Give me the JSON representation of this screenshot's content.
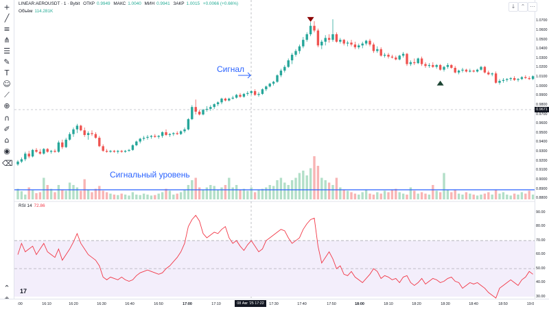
{
  "header": {
    "symbol": "LINEAR:AEROUSDT · 1 · Bybit",
    "open_label": "ОТКР",
    "open_value": "0.9949",
    "high_label": "МАКС",
    "high_value": "1.0040",
    "low_label": "МИН",
    "low_value": "0.9941",
    "close_label": "ЗАКР",
    "close_value": "1.0015",
    "change": "+0.0066 (+0.66%)",
    "volume_label": "Объём",
    "volume_value": "114.281K"
  },
  "rsi": {
    "label": "RSI 14",
    "value": "72.86"
  },
  "annotations": {
    "signal": "Сигнал",
    "signal_level": "Сигнальный уровень"
  },
  "price_scale": {
    "current": "0.9671",
    "labels": [
      "1.0700",
      "1.0600",
      "1.0500",
      "1.0400",
      "1.0300",
      "1.0200",
      "1.0100",
      "1.0000",
      "0.9900",
      "0.9800",
      "0.9700",
      "0.9600",
      "0.9500",
      "0.9400",
      "0.9300",
      "0.9200",
      "0.9100",
      "0.9000",
      "0.8900",
      "0.8800"
    ],
    "rsi_labels": [
      "90.00",
      "80.00",
      "70.00",
      "60.00",
      "50.00",
      "40.00",
      "30.00"
    ]
  },
  "time_axis": {
    "labels": [
      ":00",
      "16:10",
      "16:20",
      "16:30",
      "16:40",
      "16:50",
      "17:00",
      "17:10",
      "17:30",
      "17:40",
      "17:50",
      "18:00",
      "18:10",
      "18:20",
      "18:30",
      "18:40",
      "18:50",
      "19:0"
    ],
    "cursor": "08 Авг '25   17:22"
  },
  "colors": {
    "up": "#26a69a",
    "down": "#ef5350",
    "vol_up": "#b2dfc8",
    "vol_down": "#f8b4b4",
    "rsi": "#f23645",
    "level": "#2962ff",
    "rsi_band": "#f3eefb"
  },
  "chart_data": [
    {
      "type": "candlestick",
      "title": "LINEAR:AEROUSDT · 1 · Bybit",
      "x_start": "16:00",
      "x_step_minutes": 1,
      "ylim": [
        0.879,
        1.078
      ],
      "signal_level": 0.8893,
      "ohlc": [
        [
          0.9165,
          0.921,
          0.915,
          0.9195
        ],
        [
          0.9195,
          0.924,
          0.918,
          0.922
        ],
        [
          0.922,
          0.93,
          0.92,
          0.928
        ],
        [
          0.928,
          0.931,
          0.923,
          0.925
        ],
        [
          0.925,
          0.933,
          0.924,
          0.932
        ],
        [
          0.932,
          0.934,
          0.929,
          0.93
        ],
        [
          0.93,
          0.933,
          0.927,
          0.928
        ],
        [
          0.928,
          0.934,
          0.927,
          0.933
        ],
        [
          0.933,
          0.934,
          0.929,
          0.93
        ],
        [
          0.93,
          0.932,
          0.928,
          0.931
        ],
        [
          0.931,
          0.933,
          0.929,
          0.93
        ],
        [
          0.93,
          0.942,
          0.929,
          0.94
        ],
        [
          0.94,
          0.943,
          0.933,
          0.935
        ],
        [
          0.935,
          0.945,
          0.934,
          0.943
        ],
        [
          0.943,
          0.951,
          0.942,
          0.949
        ],
        [
          0.949,
          0.956,
          0.946,
          0.954
        ],
        [
          0.954,
          0.96,
          0.95,
          0.958
        ],
        [
          0.958,
          0.959,
          0.952,
          0.953
        ],
        [
          0.953,
          0.956,
          0.946,
          0.948
        ],
        [
          0.948,
          0.952,
          0.943,
          0.95
        ],
        [
          0.95,
          0.953,
          0.947,
          0.949
        ],
        [
          0.949,
          0.951,
          0.944,
          0.945
        ],
        [
          0.945,
          0.947,
          0.935,
          0.936
        ],
        [
          0.936,
          0.938,
          0.93,
          0.931
        ],
        [
          0.931,
          0.933,
          0.929,
          0.93
        ],
        [
          0.93,
          0.932,
          0.929,
          0.931
        ],
        [
          0.931,
          0.932,
          0.929,
          0.93
        ],
        [
          0.93,
          0.932,
          0.928,
          0.931
        ],
        [
          0.931,
          0.932,
          0.929,
          0.93
        ],
        [
          0.93,
          0.932,
          0.929,
          0.931
        ],
        [
          0.931,
          0.933,
          0.93,
          0.932
        ],
        [
          0.932,
          0.938,
          0.931,
          0.937
        ],
        [
          0.937,
          0.942,
          0.936,
          0.941
        ],
        [
          0.941,
          0.945,
          0.939,
          0.944
        ],
        [
          0.944,
          0.947,
          0.942,
          0.945
        ],
        [
          0.945,
          0.948,
          0.943,
          0.946
        ],
        [
          0.946,
          0.948,
          0.944,
          0.947
        ],
        [
          0.947,
          0.949,
          0.945,
          0.946
        ],
        [
          0.946,
          0.948,
          0.944,
          0.947
        ],
        [
          0.947,
          0.952,
          0.945,
          0.951
        ],
        [
          0.951,
          0.954,
          0.947,
          0.948
        ],
        [
          0.948,
          0.95,
          0.946,
          0.949
        ],
        [
          0.949,
          0.951,
          0.947,
          0.95
        ],
        [
          0.95,
          0.952,
          0.948,
          0.949
        ],
        [
          0.949,
          0.953,
          0.948,
          0.952
        ],
        [
          0.952,
          0.956,
          0.95,
          0.954
        ],
        [
          0.954,
          0.966,
          0.953,
          0.965
        ],
        [
          0.965,
          0.98,
          0.964,
          0.978
        ],
        [
          0.978,
          0.986,
          0.97,
          0.973
        ],
        [
          0.973,
          0.975,
          0.969,
          0.97
        ],
        [
          0.97,
          0.976,
          0.969,
          0.975
        ],
        [
          0.975,
          0.979,
          0.973,
          0.976
        ],
        [
          0.976,
          0.98,
          0.974,
          0.978
        ],
        [
          0.978,
          0.982,
          0.976,
          0.981
        ],
        [
          0.981,
          0.984,
          0.979,
          0.983
        ],
        [
          0.983,
          0.988,
          0.981,
          0.987
        ],
        [
          0.987,
          0.988,
          0.984,
          0.985
        ],
        [
          0.985,
          0.988,
          0.984,
          0.987
        ],
        [
          0.987,
          0.99,
          0.986,
          0.988
        ],
        [
          0.988,
          0.992,
          0.987,
          0.991
        ],
        [
          0.991,
          0.993,
          0.988,
          0.989
        ],
        [
          0.989,
          0.993,
          0.988,
          0.992
        ],
        [
          0.992,
          0.995,
          0.99,
          0.993
        ],
        [
          0.993,
          0.996,
          0.991,
          0.995
        ],
        [
          0.995,
          0.997,
          0.99,
          0.991
        ],
        [
          0.991,
          0.994,
          0.989,
          0.992
        ],
        [
          0.992,
          0.998,
          0.991,
          0.997
        ],
        [
          0.997,
          1.001,
          0.995,
          1.0
        ],
        [
          1.0,
          1.004,
          0.999,
          1.003
        ],
        [
          1.003,
          1.006,
          1.001,
          1.005
        ],
        [
          1.005,
          1.013,
          1.004,
          1.012
        ],
        [
          1.012,
          1.019,
          1.01,
          1.017
        ],
        [
          1.017,
          1.023,
          1.015,
          1.021
        ],
        [
          1.021,
          1.03,
          1.02,
          1.028
        ],
        [
          1.028,
          1.036,
          1.024,
          1.034
        ],
        [
          1.034,
          1.04,
          1.032,
          1.038
        ],
        [
          1.038,
          1.045,
          1.035,
          1.043
        ],
        [
          1.043,
          1.053,
          1.041,
          1.05
        ],
        [
          1.05,
          1.058,
          1.048,
          1.056
        ],
        [
          1.056,
          1.069,
          1.054,
          1.065
        ],
        [
          1.065,
          1.07,
          1.058,
          1.06
        ],
        [
          1.06,
          1.062,
          1.042,
          1.044
        ],
        [
          1.044,
          1.05,
          1.04,
          1.048
        ],
        [
          1.048,
          1.055,
          1.044,
          1.052
        ],
        [
          1.052,
          1.056,
          1.047,
          1.05
        ],
        [
          1.05,
          1.072,
          1.048,
          1.056
        ],
        [
          1.056,
          1.058,
          1.047,
          1.048
        ],
        [
          1.048,
          1.052,
          1.046,
          1.05
        ],
        [
          1.05,
          1.051,
          1.044,
          1.046
        ],
        [
          1.046,
          1.049,
          1.043,
          1.047
        ],
        [
          1.047,
          1.05,
          1.043,
          1.045
        ],
        [
          1.045,
          1.048,
          1.04,
          1.042
        ],
        [
          1.042,
          1.046,
          1.04,
          1.044
        ],
        [
          1.044,
          1.048,
          1.041,
          1.046
        ],
        [
          1.046,
          1.05,
          1.044,
          1.049
        ],
        [
          1.049,
          1.051,
          1.043,
          1.045
        ],
        [
          1.045,
          1.047,
          1.036,
          1.038
        ],
        [
          1.038,
          1.043,
          1.036,
          1.04
        ],
        [
          1.04,
          1.042,
          1.032,
          1.033
        ],
        [
          1.033,
          1.036,
          1.031,
          1.034
        ],
        [
          1.034,
          1.036,
          1.03,
          1.032
        ],
        [
          1.032,
          1.034,
          1.03,
          1.031
        ],
        [
          1.031,
          1.033,
          1.028,
          1.029
        ],
        [
          1.029,
          1.034,
          1.028,
          1.033
        ],
        [
          1.033,
          1.037,
          1.031,
          1.035
        ],
        [
          1.035,
          1.036,
          1.022,
          1.024
        ],
        [
          1.024,
          1.028,
          1.022,
          1.026
        ],
        [
          1.026,
          1.03,
          1.023,
          1.025
        ],
        [
          1.025,
          1.031,
          1.024,
          1.03
        ],
        [
          1.03,
          1.032,
          1.022,
          1.024
        ],
        [
          1.024,
          1.026,
          1.02,
          1.022
        ],
        [
          1.022,
          1.025,
          1.02,
          1.023
        ],
        [
          1.023,
          1.026,
          1.02,
          1.021
        ],
        [
          1.021,
          1.024,
          1.019,
          1.023
        ],
        [
          1.023,
          1.024,
          1.017,
          1.018
        ],
        [
          1.018,
          1.022,
          1.016,
          1.021
        ],
        [
          1.021,
          1.025,
          1.019,
          1.023
        ],
        [
          1.023,
          1.024,
          1.019,
          1.02
        ],
        [
          1.02,
          1.022,
          1.014,
          1.015
        ],
        [
          1.015,
          1.018,
          1.013,
          1.017
        ],
        [
          1.017,
          1.02,
          1.015,
          1.018
        ],
        [
          1.018,
          1.019,
          1.015,
          1.016
        ],
        [
          1.016,
          1.019,
          1.015,
          1.017
        ],
        [
          1.017,
          1.018,
          1.015,
          1.016
        ],
        [
          1.016,
          1.019,
          1.015,
          1.018
        ],
        [
          1.018,
          1.022,
          1.017,
          1.021
        ],
        [
          1.021,
          1.022,
          1.014,
          1.015
        ],
        [
          1.015,
          1.017,
          1.012,
          1.013
        ],
        [
          1.013,
          1.015,
          1.011,
          1.014
        ],
        [
          1.014,
          1.016,
          1.003,
          1.004
        ],
        [
          1.004,
          1.008,
          1.002,
          1.006
        ],
        [
          1.006,
          1.009,
          1.004,
          1.007
        ],
        [
          1.007,
          1.009,
          1.005,
          1.008
        ],
        [
          1.008,
          1.01,
          1.006,
          1.009
        ],
        [
          1.009,
          1.011,
          1.006,
          1.007
        ],
        [
          1.007,
          1.009,
          1.005,
          1.008
        ],
        [
          1.008,
          1.011,
          1.007,
          1.01
        ],
        [
          1.01,
          1.012,
          1.008,
          1.009
        ],
        [
          1.009,
          1.011,
          1.007,
          1.008
        ],
        [
          1.008,
          1.012,
          1.007,
          1.011
        ]
      ],
      "volume": [
        22,
        17,
        10,
        25,
        19,
        13,
        15,
        45,
        30,
        22,
        15,
        30,
        20,
        18,
        35,
        30,
        25,
        18,
        42,
        20,
        15,
        22,
        28,
        18,
        15,
        12,
        10,
        9,
        12,
        10,
        8,
        15,
        10,
        9,
        12,
        10,
        8,
        9,
        12,
        15,
        22,
        18,
        10,
        12,
        15,
        20,
        30,
        40,
        45,
        25,
        20,
        25,
        30,
        28,
        20,
        25,
        30,
        45,
        25,
        30,
        20,
        22,
        18,
        25,
        15,
        20,
        22,
        25,
        30,
        28,
        40,
        45,
        35,
        30,
        40,
        45,
        55,
        60,
        50,
        65,
        90,
        70,
        45,
        40,
        35,
        30,
        45,
        25,
        20,
        18,
        15,
        12,
        10,
        15,
        20,
        12,
        10,
        15,
        12,
        18,
        15,
        20,
        22,
        15,
        12,
        10,
        25,
        18,
        12,
        15,
        12,
        10,
        30,
        18,
        15,
        55,
        20,
        15,
        20,
        12,
        10,
        15,
        12,
        10,
        8,
        10,
        12,
        15,
        10,
        20,
        12,
        15,
        10,
        8,
        12,
        10,
        15,
        12,
        18,
        10
      ],
      "markers": [
        {
          "type": "sell",
          "index": 79,
          "price": 1.07
        },
        {
          "type": "buy",
          "index": 114,
          "price": 1.015
        }
      ]
    },
    {
      "type": "line",
      "title": "RSI 14",
      "ylim": [
        30,
        95
      ],
      "band": [
        30,
        70
      ],
      "dashed_levels": [
        70,
        50
      ],
      "values": [
        60,
        68,
        62,
        64,
        66,
        60,
        64,
        68,
        62,
        60,
        58,
        64,
        56,
        60,
        64,
        69,
        75,
        68,
        64,
        60,
        58,
        56,
        52,
        44,
        42,
        44,
        43,
        42,
        44,
        42,
        41,
        42,
        45,
        47,
        48,
        49,
        48,
        47,
        46,
        47,
        50,
        52,
        55,
        58,
        62,
        68,
        80,
        85,
        88,
        84,
        75,
        72,
        74,
        76,
        75,
        78,
        80,
        72,
        68,
        70,
        66,
        63,
        67,
        70,
        66,
        62,
        64,
        70,
        72,
        74,
        76,
        78,
        77,
        72,
        68,
        70,
        72,
        78,
        82,
        85,
        86,
        66,
        54,
        58,
        62,
        57,
        50,
        52,
        46,
        45,
        48,
        44,
        42,
        40,
        43,
        46,
        50,
        48,
        43,
        45,
        44,
        42,
        43,
        40,
        44,
        45,
        40,
        38,
        40,
        43,
        39,
        41,
        43,
        42,
        40,
        41,
        43,
        44,
        41,
        40,
        36,
        38,
        40,
        39,
        40,
        38,
        36,
        33,
        31,
        29,
        36,
        38,
        40,
        42,
        40,
        38,
        42,
        44,
        48,
        46
      ]
    }
  ]
}
